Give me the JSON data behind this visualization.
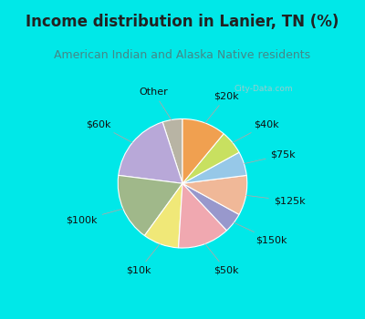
{
  "title": "Income distribution in Lanier, TN (%)",
  "subtitle": "American Indian and Alaska Native residents",
  "watermark": "City-Data.com",
  "labels": [
    "Other",
    "$60k",
    "$100k",
    "$10k",
    "$50k",
    "$150k",
    "$125k",
    "$75k",
    "$40k",
    "$20k"
  ],
  "values": [
    5,
    18,
    17,
    9,
    13,
    5,
    10,
    6,
    6,
    11
  ],
  "colors": [
    "#b8b4a4",
    "#b8a8d8",
    "#a0b88a",
    "#f0e878",
    "#f0a8b0",
    "#9898cc",
    "#f0b898",
    "#96c8e8",
    "#c8e060",
    "#f0a050"
  ],
  "bg_color": "#00e8e8",
  "chart_bg_top": "#ddf0e8",
  "chart_bg_bottom": "#e8f8f0",
  "title_color": "#222222",
  "subtitle_color": "#448888",
  "label_fontsize": 8,
  "title_fontsize": 12,
  "subtitle_fontsize": 9,
  "startangle": 90,
  "border_width": 0.08,
  "watermark_color": "#b0c8c8"
}
